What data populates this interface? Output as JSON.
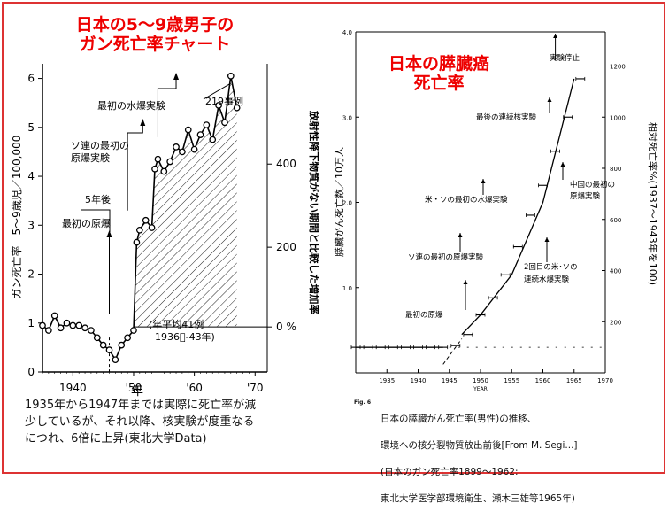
{
  "left_chart": {
    "title_line1": "日本の5～9歳男子の",
    "title_line2": "ガン死亡率チャート",
    "ylabel_left": "ガン死亡率　5～9歳児／100,000",
    "ylabel_right": "放射性降下物質がない期間と比較した増加率",
    "xlabel": "年",
    "right_ticks": [
      "0 %",
      "200",
      "400"
    ],
    "annotations": {
      "n219": "219事例",
      "last_h": "最初の水爆実験",
      "soviet1": "ソ連の最初の",
      "soviet2": "原爆実験",
      "five_years": "5年後",
      "first_atomic": "最初の原爆",
      "avg1": "(年平均41例",
      "avg2": "1936ﾟ-43年)"
    },
    "caption": "1935年から1947年までは実際に死亡率が減\n少しているが、それ以降、核実験が度重なる\nにつれ、6倍に上昇(東北大学Data)"
  },
  "right_chart": {
    "title_line1": "日本の膵臓癌",
    "title_line2": "死亡率",
    "ylabel_left": "膵臓がん死亡数／10万人",
    "ylabel_right": "相対死亡率%(1937～1943年を100)",
    "xlabel": "YEAR",
    "right_ticks": [
      "200",
      "400",
      "600",
      "800",
      "1000",
      "1200"
    ],
    "annotations": {
      "stop": "実験停止",
      "last_nuclear": "最後の連続核実験",
      "china1": "中国の最初の",
      "china2": "原爆実験",
      "us_soviet_h": "米・ソの最初の水爆実験",
      "soviet_a": "ソ連の最初の原爆実験",
      "second1": "2回目の米･ソの",
      "second2": "連続水爆実験",
      "first_a": "最初の原爆"
    },
    "fig_label": "Fig. 6",
    "caption_line1": "日本の膵臓がん死亡率(男性)の推移、",
    "caption_line2": "環境への核分裂物質放出前後[From M. Segi...]",
    "caption_line3": "(日本のガン死亡率1899～1962:",
    "caption_line4": "東北大学医学部環境衛生、瀬木三雄等1965年)"
  },
  "chart_data": [
    {
      "type": "line",
      "title": "日本の5～9歳男子のガン死亡率チャート",
      "xlabel": "年",
      "ylabel": "ガン死亡率　5～9歳児／100,000",
      "xlim": [
        1935,
        1972
      ],
      "ylim": [
        0,
        6.3
      ],
      "x_ticks": [
        1940,
        1950,
        1960,
        1970
      ],
      "x_tick_labels": [
        "1940",
        "'50",
        "'60",
        "'70"
      ],
      "y_ticks": [
        0,
        1,
        2,
        3,
        4,
        5,
        6
      ],
      "grid": false,
      "x": [
        1935,
        1936,
        1937,
        1938,
        1939,
        1940,
        1941,
        1942,
        1943,
        1944,
        1945,
        1946,
        1947,
        1948,
        1949,
        1950,
        1950.5,
        1951,
        1952,
        1953,
        1953.5,
        1954,
        1955,
        1956,
        1957,
        1958,
        1959,
        1960,
        1961,
        1962,
        1963,
        1964,
        1965,
        1966,
        1967
      ],
      "y": [
        0.95,
        0.85,
        1.15,
        0.9,
        1.0,
        0.95,
        0.95,
        0.9,
        0.85,
        0.7,
        0.55,
        0.45,
        0.25,
        0.55,
        0.7,
        0.85,
        2.65,
        2.9,
        3.1,
        2.95,
        4.15,
        4.35,
        4.1,
        4.3,
        4.6,
        4.5,
        4.95,
        4.55,
        4.85,
        5.05,
        4.75,
        5.45,
        5.1,
        6.05,
        5.4
      ],
      "baseline_average": 0.92
    },
    {
      "type": "line",
      "title": "日本の膵臓癌死亡率",
      "xlabel": "YEAR",
      "ylabel": "膵臓がん死亡数／10万人",
      "xlim": [
        1930,
        1970
      ],
      "ylim": [
        0,
        4.0
      ],
      "x_ticks": [
        1935,
        1940,
        1945,
        1950,
        1955,
        1960,
        1965,
        1970
      ],
      "y_ticks": [
        0,
        1.0,
        2.0,
        3.0,
        4.0
      ],
      "right_axis": "相対死亡率%(1937～1943年を100)",
      "grid": false,
      "x": [
        1930,
        1932,
        1934,
        1936,
        1938,
        1940,
        1942,
        1944,
        1946,
        1948,
        1950,
        1952,
        1954,
        1956,
        1958,
        1960,
        1962,
        1964,
        1966
      ],
      "y": [
        0.3,
        0.3,
        0.3,
        0.3,
        0.3,
        0.3,
        0.3,
        0.3,
        0.32,
        0.45,
        0.68,
        0.88,
        1.15,
        1.48,
        1.85,
        2.2,
        2.6,
        3.0,
        3.45
      ],
      "trend_x": [
        1947,
        1950,
        1955,
        1960,
        1965
      ],
      "trend_y": [
        0.45,
        0.68,
        1.15,
        2.0,
        3.45
      ]
    }
  ]
}
